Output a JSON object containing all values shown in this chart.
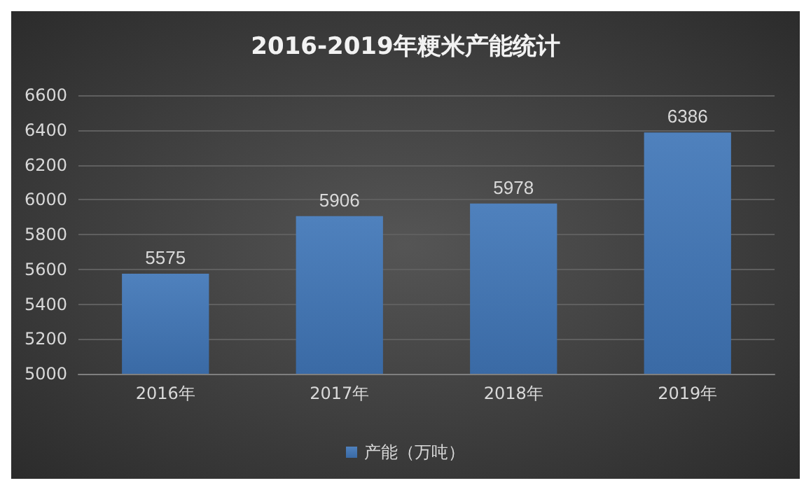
{
  "chart_data": {
    "type": "bar",
    "title": "2016-2019年粳米产能统计",
    "categories": [
      "2016年",
      "2017年",
      "2018年",
      "2019年"
    ],
    "series": [
      {
        "name": "产能（万吨）",
        "color": "#4f81bd",
        "values": [
          5575,
          5906,
          5978,
          6386
        ]
      }
    ],
    "ylim": [
      5000,
      6600
    ],
    "yticks": [
      5000,
      5200,
      5400,
      5600,
      5800,
      6000,
      6200,
      6400,
      6600
    ],
    "grid": "y",
    "legend": "bottom",
    "data_labels": true
  }
}
